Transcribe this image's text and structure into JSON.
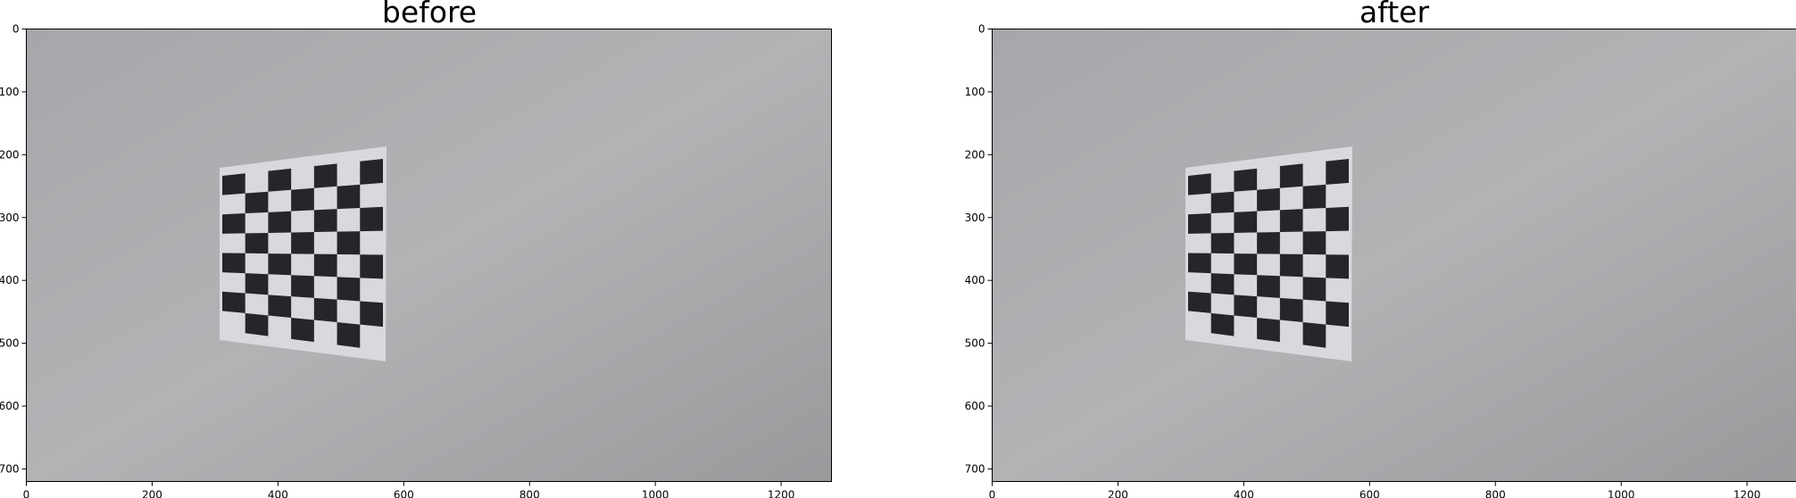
{
  "panels": [
    {
      "title": "before"
    },
    {
      "title": "after"
    }
  ],
  "axes": {
    "x_ticks": [
      "0",
      "200",
      "400",
      "600",
      "800",
      "1000",
      "1200"
    ],
    "y_ticks": [
      "0",
      "100",
      "200",
      "300",
      "400",
      "500",
      "600",
      "700"
    ],
    "x_range": [
      0,
      1280
    ],
    "y_range": [
      0,
      720
    ]
  },
  "image": {
    "description_colors": {
      "wall": "#a9a8ab",
      "board_white": "#d7d6da",
      "board_black": "#26252b",
      "border": "#000000"
    },
    "checkerboard": {
      "cols": 7,
      "rows": 8
    }
  }
}
